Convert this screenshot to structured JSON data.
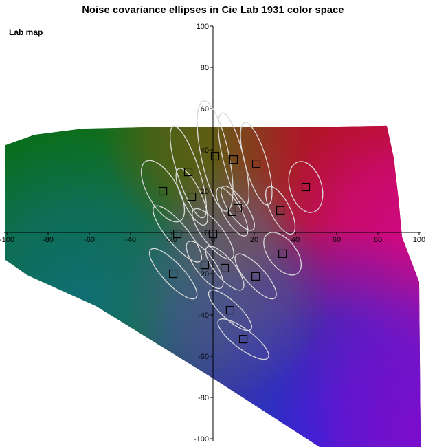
{
  "title": "Noise covariance ellipses in Cie Lab 1931 color space",
  "corner_label": "Lab map",
  "chart_data": {
    "type": "scatter",
    "title": "Noise covariance ellipses in Cie Lab 1931 color space",
    "xlabel": "",
    "ylabel": "",
    "xlim": [
      -100,
      100
    ],
    "ylim": [
      -100,
      100
    ],
    "grid": false,
    "legend": null,
    "x_ticks": [
      -100,
      -80,
      -60,
      -40,
      -20,
      0,
      20,
      40,
      60,
      80,
      100
    ],
    "y_ticks": [
      -100,
      -80,
      -60,
      -40,
      -20,
      0,
      20,
      40,
      60,
      80,
      100
    ],
    "samples": [
      {
        "a": 1.0,
        "b": 37.0,
        "semi_major": 27.3,
        "semi_minor": 6.7,
        "rot_deg": -12
      },
      {
        "a": 10.0,
        "b": 35.3,
        "semi_major": 23.3,
        "semi_minor": 5.0,
        "rot_deg": -14
      },
      {
        "a": 21.0,
        "b": 33.3,
        "semi_major": 20.7,
        "semi_minor": 5.3,
        "rot_deg": -16
      },
      {
        "a": -12.0,
        "b": 29.3,
        "semi_major": 23.3,
        "semi_minor": 5.3,
        "rot_deg": -18
      },
      {
        "a": -24.3,
        "b": 20.0,
        "semi_major": 16.7,
        "semi_minor": 7.3,
        "rot_deg": -30
      },
      {
        "a": -10.3,
        "b": 17.3,
        "semi_major": 15.0,
        "semi_minor": 4.7,
        "rot_deg": -25
      },
      {
        "a": 45.0,
        "b": 22.0,
        "semi_major": 12.7,
        "semi_minor": 7.7,
        "rot_deg": -17
      },
      {
        "a": 32.7,
        "b": 10.7,
        "semi_major": 12.7,
        "semi_minor": 4.7,
        "rot_deg": -27
      },
      {
        "a": 9.3,
        "b": 10.0,
        "semi_major": 13.3,
        "semi_minor": 4.3,
        "rot_deg": -30
      },
      {
        "a": 12.0,
        "b": 11.7,
        "semi_major": 12.7,
        "semi_minor": 4.3,
        "rot_deg": -35
      },
      {
        "a": -17.3,
        "b": -0.7,
        "semi_major": 17.3,
        "semi_minor": 5.0,
        "rot_deg": -40
      },
      {
        "a": 0.0,
        "b": -0.7,
        "semi_major": 15.0,
        "semi_minor": 5.0,
        "rot_deg": -38
      },
      {
        "a": -4.0,
        "b": -15.7,
        "semi_major": 13.7,
        "semi_minor": 4.7,
        "rot_deg": -36
      },
      {
        "a": 5.7,
        "b": -17.3,
        "semi_major": 13.3,
        "semi_minor": 4.7,
        "rot_deg": -40
      },
      {
        "a": -19.3,
        "b": -20.0,
        "semi_major": 16.0,
        "semi_minor": 5.0,
        "rot_deg": -43
      },
      {
        "a": 33.7,
        "b": -10.3,
        "semi_major": 12.0,
        "semi_minor": 6.7,
        "rot_deg": -38
      },
      {
        "a": 20.7,
        "b": -21.3,
        "semi_major": 14.0,
        "semi_minor": 4.7,
        "rot_deg": -42
      },
      {
        "a": 8.3,
        "b": -37.7,
        "semi_major": 13.7,
        "semi_minor": 4.3,
        "rot_deg": -47
      },
      {
        "a": 14.7,
        "b": -51.7,
        "semi_major": 15.0,
        "semi_minor": 4.7,
        "rot_deg": -53
      }
    ],
    "gamut_polygon_ab": [
      [
        -100.7,
        42.3
      ],
      [
        -86.7,
        47.3
      ],
      [
        -63.3,
        50.3
      ],
      [
        -20.0,
        51.3
      ],
      [
        36.7,
        51.0
      ],
      [
        84.3,
        51.7
      ],
      [
        87.7,
        36.0
      ],
      [
        90.0,
        16.0
      ],
      [
        91.7,
        -2.3
      ],
      [
        100.0,
        -24.0
      ],
      [
        100.7,
        -104.0
      ],
      [
        51.7,
        -104.0
      ],
      [
        0.0,
        -70.7
      ],
      [
        -56.7,
        -35.7
      ],
      [
        -90.0,
        -20.7
      ],
      [
        -100.7,
        -13.3
      ]
    ],
    "colors": {
      "ellipse_stroke": "#dadada",
      "marker_stroke": "#000000",
      "axis": "#000000",
      "tick_text": "#000000",
      "gamut_palette": {
        "green": "#0a6e1f",
        "olive": "#5f5c10",
        "red": "#b31218",
        "magenta": "#d2088c",
        "purple": "#7d0ccd",
        "blue": "#122de1",
        "teal": "#106e82",
        "slate": "#4b5796",
        "mauve": "#705a6e"
      }
    }
  }
}
